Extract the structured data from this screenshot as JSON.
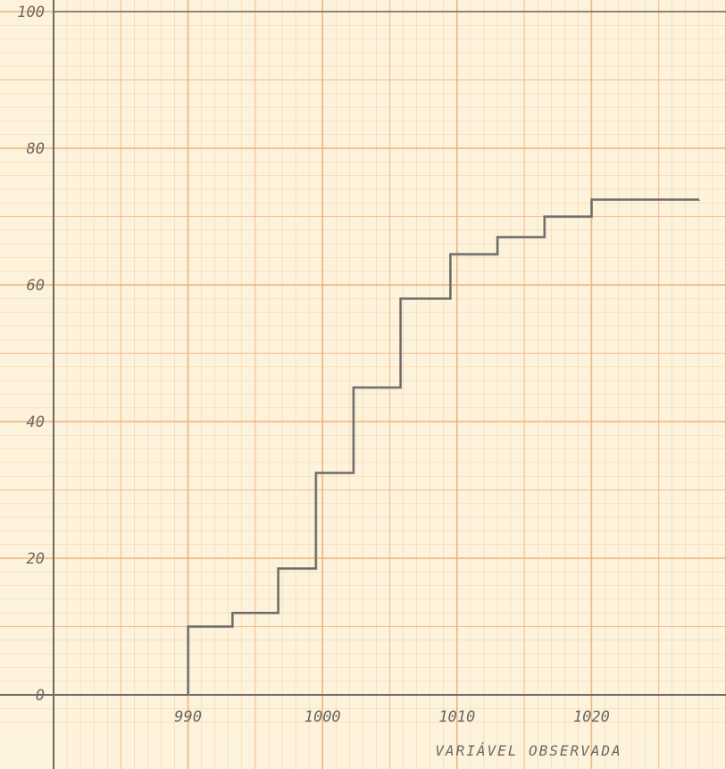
{
  "chart_data": {
    "type": "line",
    "step": true,
    "xlabel": "VARIÁVEL OBSERVADA",
    "ylabel": "",
    "xlim": [
      980,
      1030
    ],
    "ylim": [
      0,
      100
    ],
    "x_ticks": [
      "990",
      "1000",
      "1010",
      "1020"
    ],
    "y_ticks": [
      "0",
      "20",
      "40",
      "60",
      "80",
      "100"
    ],
    "grid": true,
    "series": [
      {
        "points": [
          [
            990,
            0
          ],
          [
            990,
            10
          ],
          [
            993.3,
            10
          ],
          [
            993.3,
            12
          ],
          [
            996.7,
            12
          ],
          [
            996.7,
            18.5
          ],
          [
            999.5,
            18.5
          ],
          [
            999.5,
            32.5
          ],
          [
            1002.3,
            32.5
          ],
          [
            1002.3,
            45
          ],
          [
            1005.8,
            45
          ],
          [
            1005.8,
            58
          ],
          [
            1009.5,
            58
          ],
          [
            1009.5,
            64.5
          ],
          [
            1013,
            64.5
          ],
          [
            1013,
            67
          ],
          [
            1016.5,
            67
          ],
          [
            1016.5,
            70
          ],
          [
            1020,
            70
          ],
          [
            1020,
            72.5
          ],
          [
            1028,
            72.5
          ]
        ]
      }
    ],
    "colors": {
      "paper": "#fdf3dc",
      "grid": "#f0ac72",
      "line": "#6e6a66"
    }
  }
}
